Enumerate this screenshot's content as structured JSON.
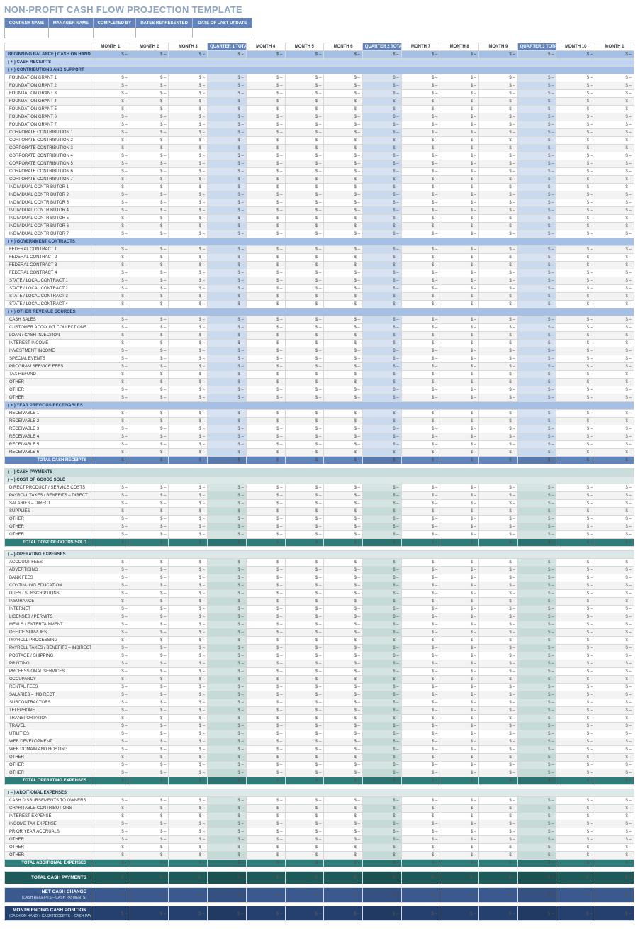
{
  "title": "NON-PROFIT CASH FLOW PROJECTION TEMPLATE",
  "meta_headers": [
    "COMPANY NAME",
    "MANAGER NAME",
    "COMPLETED BY",
    "DATES REPRESENTED",
    "DATE OF LAST UPDATE"
  ],
  "columns": [
    {
      "label": "MONTH 1",
      "kind": "m"
    },
    {
      "label": "MONTH 2",
      "kind": "m"
    },
    {
      "label": "MONTH 3",
      "kind": "m"
    },
    {
      "label": "QUARTER 1 TOTALS",
      "kind": "q"
    },
    {
      "label": "MONTH 4",
      "kind": "m"
    },
    {
      "label": "MONTH 5",
      "kind": "m"
    },
    {
      "label": "MONTH 6",
      "kind": "m"
    },
    {
      "label": "QUARTER 2 TOTALS",
      "kind": "q"
    },
    {
      "label": "MONTH 7",
      "kind": "m"
    },
    {
      "label": "MONTH 8",
      "kind": "m"
    },
    {
      "label": "MONTH 9",
      "kind": "m"
    },
    {
      "label": "QUARTER 3 TOTALS",
      "kind": "q"
    },
    {
      "label": "MONTH 10",
      "kind": "m"
    },
    {
      "label": "MONTH 1",
      "kind": "m"
    }
  ],
  "begin_balance_label": "BEGINNING BALANCE  |  CASH ON HAND",
  "receipts": {
    "header": "( + )   CASH RECEIPTS",
    "groups": [
      {
        "header": "( + )   CONTRIBUTIONS AND SUPPORT",
        "rows": [
          "FOUNDATION GRANT 1",
          "FOUNDATION GRANT 2",
          "FOUNDATION GRANT 3",
          "FOUNDATION GRANT 4",
          "FOUNDATION GRANT 5",
          "FOUNDATION GRANT 6",
          "FOUNDATION GRANT 7",
          "CORPORATE CONTRIBUTION 1",
          "CORPORATE CONTRIBUTION 2",
          "CORPORATE CONTRIBUTION 3",
          "CORPORATE CONTRIBUTION 4",
          "CORPORATE CONTRIBUTION 5",
          "CORPORATE CONTRIBUTION 6",
          "CORPORATE CONTRIBUTION 7",
          "INDIVIDUAL CONTRIBUTOR 1",
          "INDIVIDUAL CONTRIBUTOR 2",
          "INDIVIDUAL CONTRIBUTOR 3",
          "INDIVIDUAL CONTRIBUTOR 4",
          "INDIVIDUAL CONTRIBUTOR 5",
          "INDIVIDUAL CONTRIBUTOR 6",
          "INDIVIDUAL CONTRIBUTOR 7"
        ]
      },
      {
        "header": "( + )   GOVERNMENT CONTRACTS",
        "rows": [
          "FEDERAL CONTRACT 1",
          "FEDERAL CONTRACT 2",
          "FEDERAL CONTRACT 3",
          "FEDERAL CONTRACT 4",
          "STATE / LOCAL CONTRACT 1",
          "STATE / LOCAL CONTRACT 2",
          "STATE / LOCAL CONTRACT 3",
          "STATE / LOCAL CONTRACT 4"
        ]
      },
      {
        "header": "( + )   OTHER REVENUE SOURCES",
        "rows": [
          "CASH SALES",
          "CUSTOMER ACCOUNT COLLECTIONS",
          "LOAN / CASH INJECTION",
          "INTEREST INCOME",
          "INVESTMENT INCOME",
          "SPECIAL EVENTS",
          "PROGRAM SERVICE FEES",
          "TAX REFUND",
          "OTHER",
          "OTHER",
          "OTHER"
        ]
      },
      {
        "header": "( + )   YEAR PREVIOUS RECEIVABLES",
        "rows": [
          "RECEIVABLE 1",
          "RECEIVABLE 2",
          "RECEIVABLE 3",
          "RECEIVABLE 4",
          "RECEIVABLE 5",
          "RECEIVABLE 6"
        ]
      }
    ],
    "total_label": "TOTAL CASH RECEIPTS",
    "total_color": "#6184bc"
  },
  "payments": {
    "header": "( – )   CASH PAYMENTS",
    "groups": [
      {
        "header": "( – )   COST OF GOODS SOLD",
        "rows": [
          "DIRECT PRODUCT / SERVICE COSTS",
          "PAYROLL TAXES / BENEFITS – DIRECT",
          "SALARIES – DIRECT",
          "SUPPLIES",
          "OTHER",
          "OTHER",
          "OTHER"
        ],
        "total_label": "TOTAL COST OF GOODS SOLD",
        "total_color": "#2f7d7a"
      },
      {
        "header": "( – )   OPERATING EXPENSES",
        "rows": [
          "ACCOUNT FEES",
          "ADVERTISING",
          "BANK FEES",
          "CONTINUING EDUCATION",
          "DUES / SUBSCRIPTIONS",
          "INSURANCE",
          "INTERNET",
          "LICENSES / PERMITS",
          "MEALS / ENTERTAINMENT",
          "OFFICE SUPPLIES",
          "PAYROLL PROCESSING",
          "PAYROLL TAXES / BENEFITS – INDIRECT",
          "POSTAGE / SHIPPING",
          "PRINTING",
          "PROFESSIONAL SERVICES",
          "OCCUPANCY",
          "RENTAL FEES",
          "SALARIES – INDIRECT",
          "SUBCONTRACTORS",
          "TELEPHONE",
          "TRANSPORTATION",
          "TRAVEL",
          "UTILITIES",
          "WEB DEVELOPMENT",
          "WEB DOMAIN AND HOSTING",
          "OTHER",
          "OTHER",
          "OTHER"
        ],
        "total_label": "TOTAL OPERATING EXPENSES",
        "total_color": "#2f7d7a"
      },
      {
        "header": "( – )   ADDITIONAL EXPENSES",
        "rows": [
          "CASH DISBURSEMENTS TO OWNERS",
          "CHARITABLE CONTRIBUTIONS",
          "INTEREST EXPENSE",
          "INCOME TAX EXPENSE",
          "PRIOR YEAR ACCRUALS",
          "OTHER",
          "OTHER",
          "OTHER"
        ],
        "total_label": "TOTAL ADDITIONAL EXPENSES",
        "total_color": "#2f7d7a"
      }
    ]
  },
  "grand_totals": [
    {
      "label": "TOTAL CASH PAYMENTS",
      "sub": "",
      "color": "#1f5a5a"
    },
    {
      "label": "NET CASH CHANGE",
      "sub": "(CASH RECEIPTS – CASH PAYMENTS)",
      "color": "#3a5a8f"
    },
    {
      "label": "MONTH ENDING CASH POSITION",
      "sub": "(CASH ON HAND + CASH RECEIPTS – CASH PAYMENTS)",
      "color": "#24406f"
    }
  ],
  "colors": {
    "title": "#8ca5c4",
    "meta_head": "#6184bc",
    "blue_band": "#a5c0e4",
    "blue_band_light": "#c0d4ef",
    "teal_band": "#c8dedc",
    "teal_band_light": "#dce9e8",
    "row_gray": "#f3f3f3",
    "q_blue": "#d7e2f2",
    "q_blue_alt": "#c9d9ee",
    "q_teal": "#d3e4e2",
    "q_teal_alt": "#c4dbd8",
    "total_blue": "#6184bc",
    "total_teal": "#2f7d7a"
  }
}
